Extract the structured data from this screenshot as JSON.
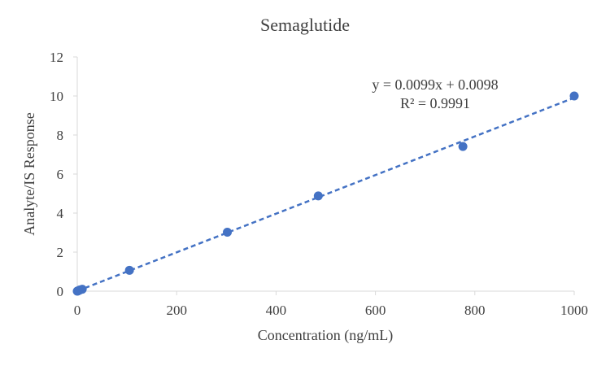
{
  "chart_data": {
    "type": "scatter",
    "title": "Semaglutide",
    "xlabel": "Concentration (ng/mL)",
    "ylabel": "Analyte/IS  Response",
    "xlim": [
      0,
      1000
    ],
    "ylim": [
      0,
      12
    ],
    "xticks": [
      0,
      200,
      400,
      600,
      800,
      1000
    ],
    "yticks": [
      0,
      2,
      4,
      6,
      8,
      10,
      12
    ],
    "grid": false,
    "series": [
      {
        "x": [
          0,
          1,
          2,
          5,
          10,
          105,
          302,
          485,
          776,
          1000
        ],
        "y": [
          0.0,
          0.01,
          0.02,
          0.06,
          0.1,
          1.07,
          3.02,
          4.88,
          7.41,
          10.0
        ],
        "color": "#4472C4"
      }
    ],
    "trendline": {
      "type": "linear",
      "slope": 0.0099,
      "intercept": 0.0098,
      "style": "dashed",
      "color": "#4472C4",
      "equation_label": "y = 0.0099x + 0.0098",
      "r2_label": "R² = 0.9991"
    }
  }
}
